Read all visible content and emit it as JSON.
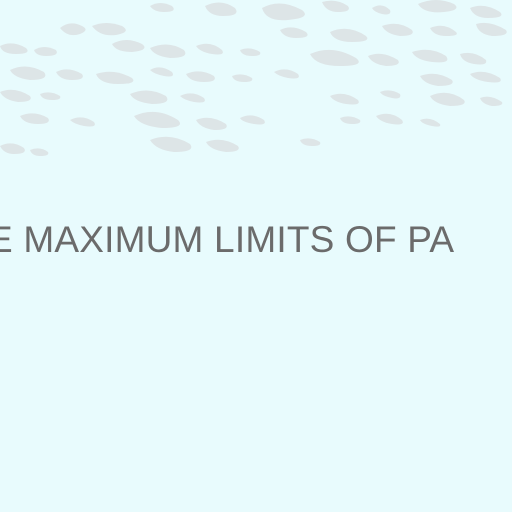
{
  "banner": {
    "text": "E MAXIMUM LIMITS OF PA"
  },
  "colors": {
    "background": "#e8fbfd",
    "text": "#6b6b6b",
    "texture": "#dfe6e8"
  }
}
